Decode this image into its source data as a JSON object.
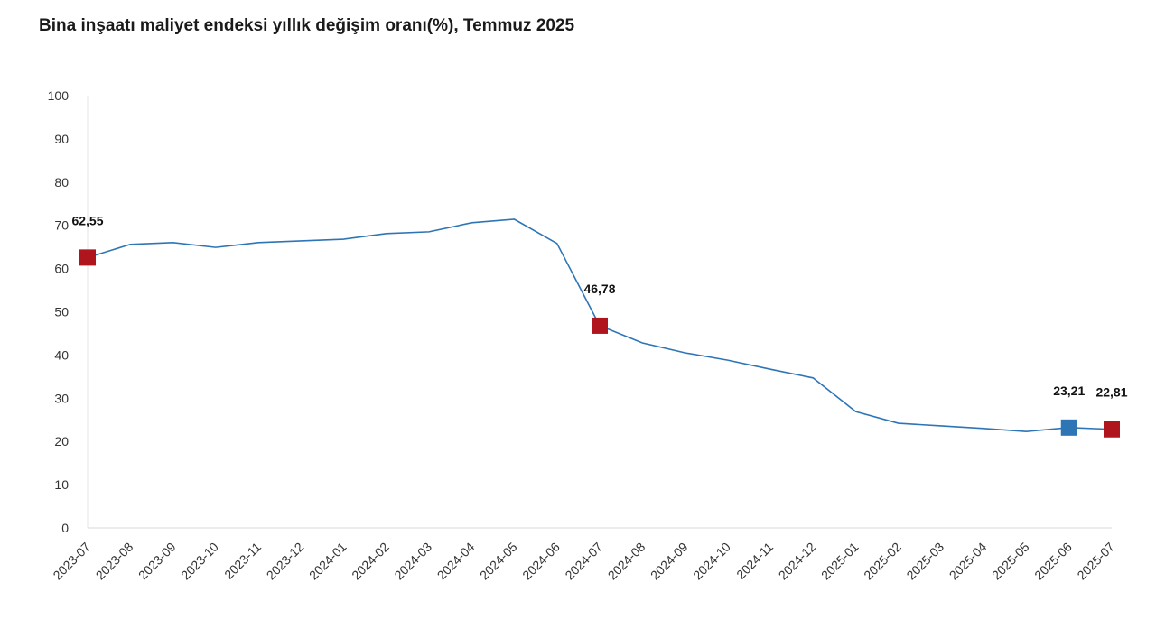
{
  "chart_data": {
    "type": "line",
    "title": "Bina inşaatı maliyet endeksi yıllık değişim oranı(%), Temmuz 2025",
    "xlabel": "",
    "ylabel": "",
    "ylim": [
      0,
      100
    ],
    "yticks": [
      0,
      10,
      20,
      30,
      40,
      50,
      60,
      70,
      80,
      90,
      100
    ],
    "grid": false,
    "categories": [
      "2023-07",
      "2023-08",
      "2023-09",
      "2023-10",
      "2023-11",
      "2023-12",
      "2024-01",
      "2024-02",
      "2024-03",
      "2024-04",
      "2024-05",
      "2024-06",
      "2024-07",
      "2024-08",
      "2024-09",
      "2024-10",
      "2024-11",
      "2024-12",
      "2025-01",
      "2025-02",
      "2025-03",
      "2025-04",
      "2025-05",
      "2025-06",
      "2025-07"
    ],
    "series": [
      {
        "name": "Yıllık değişim oranı",
        "color": "#2e75b6",
        "values": [
          62.55,
          65.6,
          66.0,
          64.9,
          66.0,
          66.4,
          66.8,
          68.1,
          68.5,
          70.6,
          71.4,
          65.8,
          46.78,
          42.8,
          40.5,
          38.8,
          36.7,
          34.7,
          26.9,
          24.2,
          23.6,
          23.0,
          22.3,
          23.21,
          22.81
        ]
      }
    ],
    "markers": [
      {
        "index": 0,
        "label": "62,55",
        "color": "#b0151d"
      },
      {
        "index": 12,
        "label": "46,78",
        "color": "#b0151d"
      },
      {
        "index": 23,
        "label": "23,21",
        "color": "#2e75b6"
      },
      {
        "index": 24,
        "label": "22,81",
        "color": "#b0151d"
      }
    ]
  }
}
